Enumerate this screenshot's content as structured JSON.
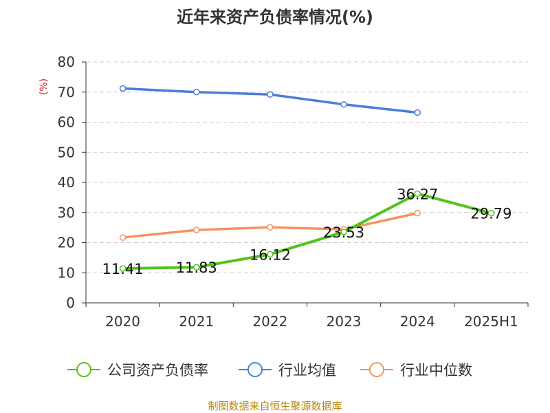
{
  "chart_data": {
    "type": "line",
    "title": "近年来资产负债率情况(%)",
    "ylabel": "(%)",
    "xlabel": "",
    "categories": [
      "2020",
      "2021",
      "2022",
      "2023",
      "2024",
      "2025H1"
    ],
    "ylim": [
      0,
      80
    ],
    "yticks": [
      "0",
      "10",
      "20",
      "30",
      "40",
      "50",
      "60",
      "70",
      "80"
    ],
    "grid": true,
    "legend_position": "bottom",
    "series": [
      {
        "name": "公司资产负债率",
        "color": "#52c41a",
        "values": [
          11.41,
          11.83,
          16.12,
          23.53,
          36.27,
          29.79
        ],
        "labels": [
          "11.41",
          "11.83",
          "16.12",
          "23.53",
          "36.27",
          "29.79"
        ]
      },
      {
        "name": "行业均值",
        "color": "#4a7fd8",
        "values": [
          71.2,
          70.0,
          69.2,
          65.9,
          63.2,
          null
        ]
      },
      {
        "name": "行业中位数",
        "color": "#f5925e",
        "values": [
          21.7,
          24.2,
          25.1,
          24.4,
          29.8,
          null
        ]
      }
    ]
  },
  "footer": {
    "source": "制图数据来自恒生聚源数据库"
  }
}
